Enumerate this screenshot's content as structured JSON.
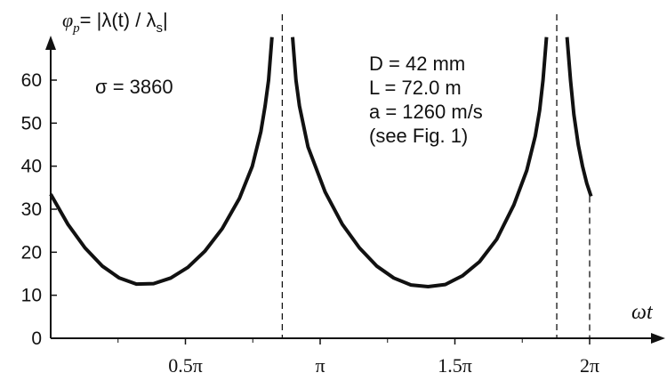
{
  "chart_data": {
    "type": "line",
    "ylabel_prefix": "φ",
    "ylabel_sub": "p",
    "ylabel_rest": "= |λ(t) / λ",
    "ylabel_sub2": "s",
    "ylabel_end": "|",
    "xlabel": "ωt",
    "ylim": [
      0,
      70
    ],
    "xlim": [
      0,
      6.5
    ],
    "y_ticks": [
      {
        "value": 0,
        "label": "0"
      },
      {
        "value": 10,
        "label": "10"
      },
      {
        "value": 20,
        "label": "20"
      },
      {
        "value": 30,
        "label": "30"
      },
      {
        "value": 40,
        "label": "40"
      },
      {
        "value": 50,
        "label": "50"
      },
      {
        "value": 60,
        "label": "60"
      }
    ],
    "x_ticks": [
      {
        "value": 1.5708,
        "label": "0.5π"
      },
      {
        "value": 3.1416,
        "label": "π"
      },
      {
        "value": 4.7124,
        "label": "1.5π"
      },
      {
        "value": 6.2832,
        "label": "2π"
      }
    ],
    "asymptotes": [
      2.7,
      5.9
    ],
    "end_marker": 6.2832,
    "series": [
      {
        "x": [
          0.0,
          0.2,
          0.4,
          0.6,
          0.8,
          1.0,
          1.2,
          1.4,
          1.6,
          1.8,
          2.0,
          2.2,
          2.35,
          2.45,
          2.5,
          2.54,
          2.58
        ],
        "y": [
          33.5,
          26.5,
          21.0,
          16.8,
          14.0,
          12.6,
          12.7,
          14.0,
          16.5,
          20.3,
          25.5,
          32.5,
          40.0,
          48.0,
          54.0,
          60.0,
          70.0
        ]
      },
      {
        "x": [
          2.82,
          2.86,
          2.9,
          3.0,
          3.2,
          3.4,
          3.6,
          3.8,
          4.0,
          4.2,
          4.4,
          4.6,
          4.8,
          5.0,
          5.2,
          5.4,
          5.55,
          5.65,
          5.7,
          5.74,
          5.78
        ],
        "y": [
          70.0,
          60.0,
          54.0,
          44.5,
          34.0,
          26.5,
          21.0,
          16.8,
          14.0,
          12.4,
          12.0,
          12.5,
          14.5,
          17.8,
          23.0,
          31.0,
          39.0,
          47.0,
          53.0,
          60.0,
          70.0
        ]
      },
      {
        "x": [
          6.02,
          6.06,
          6.1,
          6.15,
          6.2,
          6.25,
          6.3
        ],
        "y": [
          70.0,
          60.0,
          52.0,
          45.0,
          40.0,
          36.0,
          33.0
        ]
      }
    ]
  },
  "annotations": {
    "sigma": "σ = 3860",
    "params": [
      "D = 42 mm",
      "L = 72.0 m",
      "a = 1260 m/s",
      "(see Fig. 1)"
    ]
  }
}
